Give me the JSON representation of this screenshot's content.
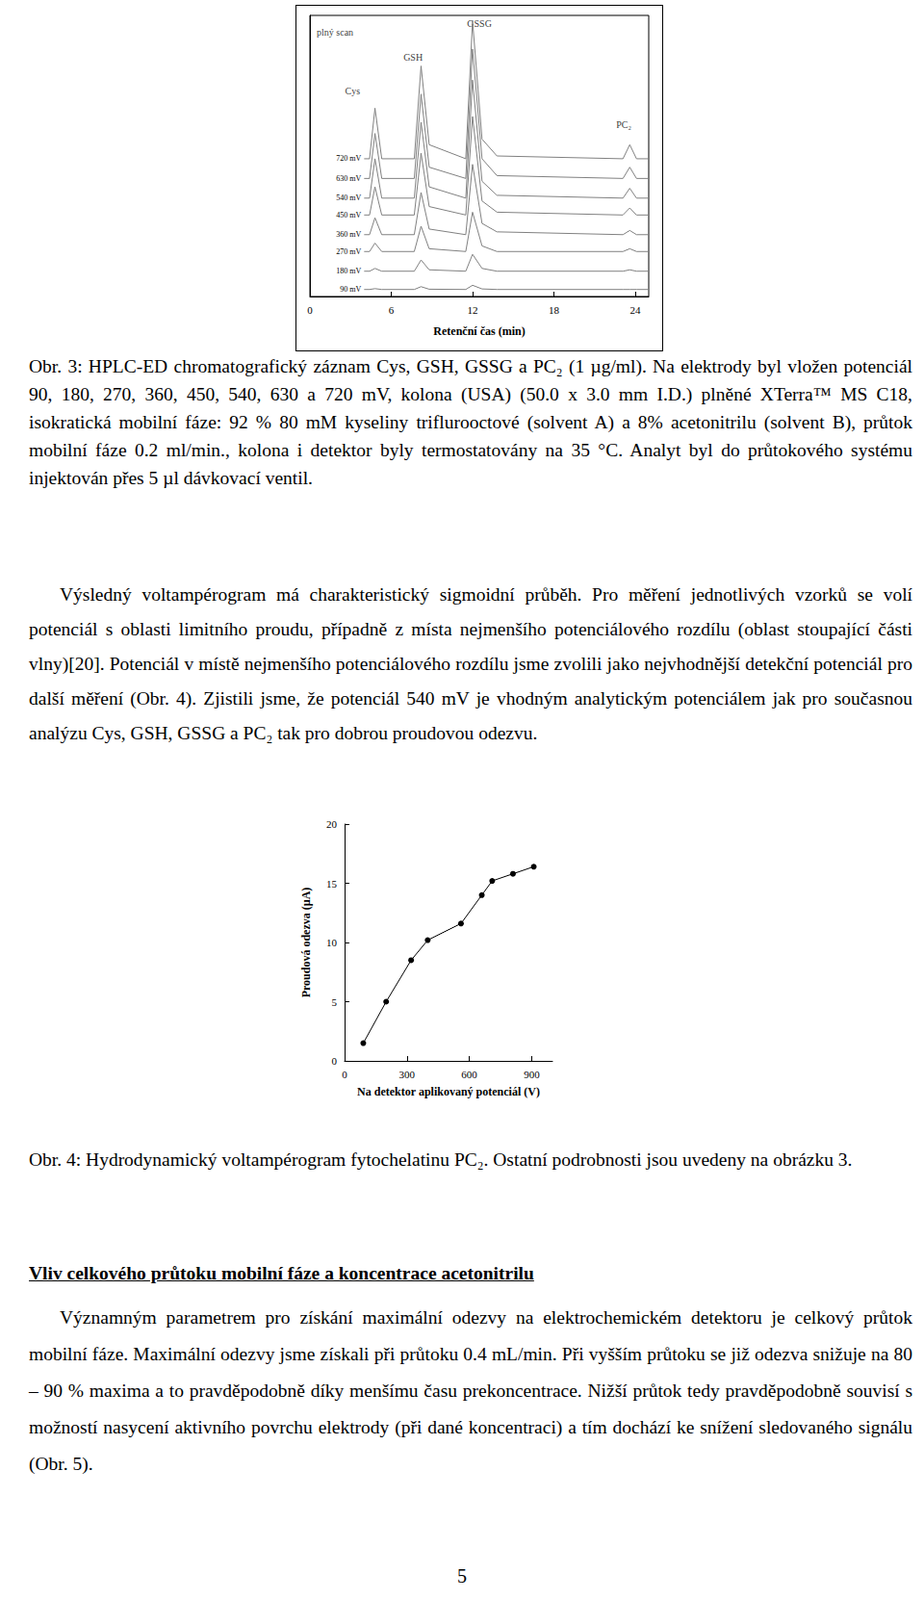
{
  "chart_data": [
    {
      "type": "line",
      "x_label": "Retenční čas (min)",
      "x": [
        4,
        4.4,
        4.8,
        5.3,
        7.7,
        8.2,
        8.8,
        11.5,
        12,
        12.7,
        13.8,
        23.1,
        23.6,
        24.1,
        25
      ],
      "xlim": [
        0,
        25
      ],
      "xticks": [
        0,
        6,
        12,
        18,
        24
      ],
      "ylim": [
        0,
        100
      ],
      "yticks": [],
      "tick_labels": "x",
      "color": "#808080",
      "series": [
        {
          "name": "90 mV",
          "values": [
            2.5,
            2.5,
            2.8,
            2.5,
            2.5,
            3.5,
            2.6,
            2.5,
            4,
            2.7,
            2.5,
            2.5,
            2.5,
            2.5,
            2.5
          ]
        },
        {
          "name": "180 mV",
          "values": [
            9,
            9,
            10,
            9,
            9,
            13,
            9.5,
            9,
            15,
            10,
            9,
            9,
            9.5,
            9,
            9
          ]
        },
        {
          "name": "270 mV",
          "values": [
            16,
            16,
            19,
            16,
            16,
            25,
            17,
            16,
            30,
            18,
            16,
            16,
            17,
            16,
            16
          ]
        },
        {
          "name": "360 mV",
          "values": [
            22,
            22,
            28,
            22,
            22,
            37,
            24,
            22,
            47,
            26,
            23,
            22,
            23.5,
            22,
            22
          ]
        },
        {
          "name": "450 mV",
          "values": [
            29,
            29,
            39,
            29,
            29,
            51,
            32,
            29,
            64,
            34,
            30,
            29,
            31.5,
            29,
            29
          ]
        },
        {
          "name": "540 mV",
          "values": [
            35,
            35,
            49,
            35,
            35,
            62,
            39,
            35,
            77,
            41,
            36,
            35,
            38.5,
            35,
            35
          ]
        },
        {
          "name": "630 mV",
          "values": [
            42,
            42,
            58,
            42,
            42,
            72,
            46,
            42,
            88,
            49,
            43,
            42,
            46,
            42,
            42
          ]
        },
        {
          "name": "720 mV",
          "values": [
            49,
            49,
            67,
            49,
            49,
            82,
            54,
            49,
            98,
            56,
            50,
            49,
            54,
            49,
            49
          ]
        }
      ],
      "annotations": [
        {
          "text": "plný scan",
          "x": 0.5,
          "y": 94
        },
        {
          "text": "Cys",
          "x": 2.6,
          "y": 73
        },
        {
          "text": "GSH",
          "x": 6.9,
          "y": 85
        },
        {
          "text": "GSSG",
          "x": 11.6,
          "y": 97
        },
        {
          "text": "PC₂",
          "x": 22.6,
          "y": 61
        }
      ]
    },
    {
      "type": "line",
      "marker": "circle",
      "color": "#000000",
      "x_label": "Na detektor aplikovaný potenciál (V)",
      "y_label": "Proudová odezva (µA)",
      "x": [
        90,
        200,
        320,
        400,
        560,
        660,
        710,
        810,
        910
      ],
      "values": [
        1.5,
        5.0,
        8.5,
        10.2,
        11.6,
        14.0,
        15.2,
        15.8,
        16.4
      ],
      "xlim": [
        0,
        1000
      ],
      "xticks": [
        0,
        300,
        600,
        900
      ],
      "ylim": [
        0,
        20
      ],
      "yticks": [
        0,
        5,
        10,
        15,
        20
      ]
    }
  ],
  "text": {
    "caption_1": "Obr. 3: HPLC-ED chromatografický záznam Cys, GSH, GSSG a PC₂ (1 µg/ml). Na elektrody byl vložen potenciál 90, 180, 270, 360, 450, 540, 630 a 720 mV, kolona (USA) (50.0 x 3.0 mm I.D.) plněné XTerra™ MS C18, isokratická mobilní fáze: 92 % 80 mM kyseliny triflurooctové (solvent A) a 8% acetonitrilu (solvent B), průtok mobilní fáze 0.2 ml/min., kolona i detektor byly termostatovány na 35 °C. Analyt byl do průtokového systému injektován přes 5 µl dávkovací ventil.",
    "paragraph_1": "Výsledný voltampérogram má charakteristický sigmoidní průběh. Pro měření jednotlivých vzorků se volí potenciál s oblasti limitního proudu, případně z místa nejmenšího potenciálového rozdílu (oblast stoupající části vlny)[20]. Potenciál v místě nejmenšího potenciálového rozdílu jsme zvolili jako nejvhodnější detekční potenciál pro další měření (Obr. 4). Zjistili jsme, že potenciál 540 mV je vhodným analytickým potenciálem jak pro současnou analýzu Cys, GSH, GSSG a PC₂ tak pro dobrou proudovou odezvu.",
    "caption_2": "Obr. 4: Hydrodynamický voltampérogram fytochelatinu PC₂. Ostatní podrobnosti jsou uvedeny na obrázku 3.",
    "heading": "Vliv celkového průtoku mobilní fáze a koncentrace acetonitrilu",
    "paragraph_2": "Významným parametrem pro získání maximální odezvy na elektrochemickém detektoru je celkový průtok mobilní fáze. Maximální odezvy jsme získali při průtoku 0.4 mL/min. Při vyšším průtoku se již odezva snižuje na 80 – 90 % maxima a to pravděpodobně díky menšímu času prekoncentrace. Nižší průtok tedy pravděpodobně souvisí s možností nasycení aktivního povrchu elektrody (při dané koncentraci) a tím dochází ke snížení sledovaného signálu (Obr. 5).",
    "page_number": 5
  }
}
